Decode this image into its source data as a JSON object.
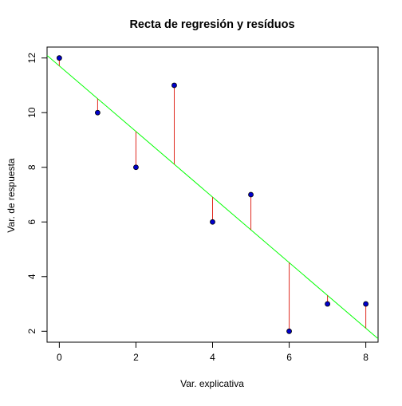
{
  "chart_data": {
    "type": "scatter",
    "title": "Recta de regresión y resíduos",
    "xlabel": "Var. explicativa",
    "ylabel": "Var. de respuesta",
    "xlim": [
      -0.32,
      8.32
    ],
    "ylim": [
      1.6,
      12.4
    ],
    "x_ticks": [
      0,
      2,
      4,
      6,
      8
    ],
    "y_ticks": [
      2,
      4,
      6,
      8,
      10,
      12
    ],
    "grid": false,
    "series": [
      {
        "x": [
          0,
          1,
          2,
          3,
          4,
          5,
          6,
          7,
          8
        ],
        "y": [
          12,
          10,
          8,
          11,
          6,
          7,
          2,
          3,
          3
        ],
        "point_fill": "#0000cc",
        "point_stroke": "#000000"
      }
    ],
    "regression_line": {
      "intercept": 11.7111,
      "slope": -1.2,
      "color": "#00ff00"
    },
    "residuals": {
      "color": "#e0291f"
    }
  }
}
